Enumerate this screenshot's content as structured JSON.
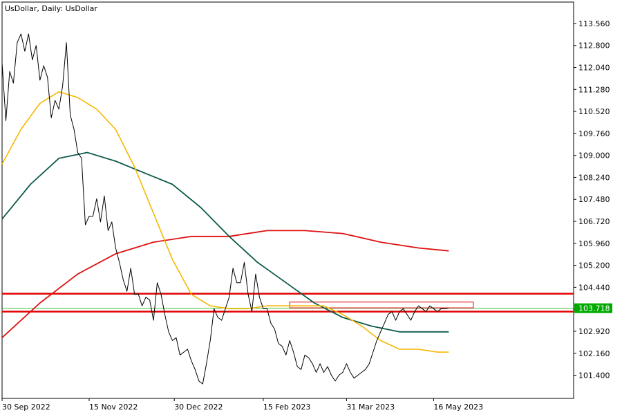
{
  "chart_data": {
    "type": "line",
    "title": "UsDollar, Daily:  UsDollar",
    "ylim": [
      100.6,
      114.3
    ],
    "xlim_dates": [
      "2022-09-30",
      "2023-07-29"
    ],
    "y_ticks": [
      101.4,
      102.16,
      102.92,
      103.68,
      104.44,
      105.2,
      105.96,
      106.72,
      107.48,
      108.24,
      109.0,
      109.76,
      110.52,
      111.28,
      112.04,
      112.8,
      113.56
    ],
    "y_tick_labels": [
      "101.400",
      "102.160",
      "102.920",
      "103.680",
      "104.440",
      "105.200",
      "105.960",
      "106.720",
      "107.480",
      "108.240",
      "109.000",
      "109.760",
      "110.520",
      "111.280",
      "112.040",
      "112.800",
      "113.560"
    ],
    "x_ticks": [
      "2022-09-30",
      "2022-11-15",
      "2022-12-30",
      "2023-02-15",
      "2023-03-31",
      "2023-05-16"
    ],
    "x_tick_labels": [
      "30 Sep 2022",
      "15 Nov 2022",
      "30 Dec 2022",
      "15 Feb 2023",
      "31 Mar 2023",
      "16 May 2023"
    ],
    "last_price": 103.718,
    "last_price_label": "103.718",
    "colors": {
      "price": "#000000",
      "ma_fast": "#f5b800",
      "ma_mid": "#0d5a4c",
      "ma_slow": "#e01010",
      "hline": "#e00000",
      "last_price": "#00aa00",
      "zone": "#e00000"
    },
    "horizontal_levels": [
      104.22,
      103.6
    ],
    "zone": {
      "x_start": "2023-03-01",
      "x_end": "2023-06-06",
      "y_low": 103.73,
      "y_high": 103.93
    },
    "series": [
      {
        "key": "price",
        "x": [
          "2022-09-30",
          "2022-10-02",
          "2022-10-04",
          "2022-10-06",
          "2022-10-08",
          "2022-10-10",
          "2022-10-12",
          "2022-10-14",
          "2022-10-16",
          "2022-10-18",
          "2022-10-20",
          "2022-10-22",
          "2022-10-24",
          "2022-10-26",
          "2022-10-28",
          "2022-10-30",
          "2022-11-01",
          "2022-11-03",
          "2022-11-05",
          "2022-11-07",
          "2022-11-09",
          "2022-11-11",
          "2022-11-13",
          "2022-11-15",
          "2022-11-17",
          "2022-11-19",
          "2022-11-21",
          "2022-11-23",
          "2022-11-25",
          "2022-11-27",
          "2022-11-29",
          "2022-12-01",
          "2022-12-03",
          "2022-12-05",
          "2022-12-07",
          "2022-12-09",
          "2022-12-11",
          "2022-12-13",
          "2022-12-15",
          "2022-12-17",
          "2022-12-19",
          "2022-12-21",
          "2022-12-23",
          "2022-12-25",
          "2022-12-27",
          "2022-12-29",
          "2022-12-31",
          "2023-01-02",
          "2023-01-04",
          "2023-01-06",
          "2023-01-08",
          "2023-01-10",
          "2023-01-12",
          "2023-01-14",
          "2023-01-16",
          "2023-01-18",
          "2023-01-20",
          "2023-01-22",
          "2023-01-24",
          "2023-01-26",
          "2023-01-28",
          "2023-01-30",
          "2023-02-01",
          "2023-02-03",
          "2023-02-05",
          "2023-02-07",
          "2023-02-09",
          "2023-02-11",
          "2023-02-13",
          "2023-02-15",
          "2023-02-17",
          "2023-02-19",
          "2023-02-21",
          "2023-02-23",
          "2023-02-25",
          "2023-02-27",
          "2023-03-01",
          "2023-03-03",
          "2023-03-05",
          "2023-03-07",
          "2023-03-09",
          "2023-03-11",
          "2023-03-13",
          "2023-03-15",
          "2023-03-17",
          "2023-03-19",
          "2023-03-21",
          "2023-03-23",
          "2023-03-25",
          "2023-03-27",
          "2023-03-29",
          "2023-03-31",
          "2023-04-02",
          "2023-04-04",
          "2023-04-06",
          "2023-04-08",
          "2023-04-10",
          "2023-04-12",
          "2023-04-14",
          "2023-04-16",
          "2023-04-18",
          "2023-04-20",
          "2023-04-22",
          "2023-04-24",
          "2023-04-26",
          "2023-04-28",
          "2023-04-30",
          "2023-05-02",
          "2023-05-04",
          "2023-05-06",
          "2023-05-08",
          "2023-05-10",
          "2023-05-12",
          "2023-05-14",
          "2023-05-16",
          "2023-05-18",
          "2023-05-20",
          "2023-05-22",
          "2023-05-24"
        ],
        "y": [
          112.2,
          110.2,
          111.9,
          111.5,
          112.9,
          113.2,
          112.6,
          113.2,
          112.3,
          112.8,
          111.6,
          112.1,
          111.7,
          110.3,
          110.9,
          110.6,
          111.4,
          112.9,
          110.4,
          109.9,
          109.1,
          108.9,
          106.6,
          106.9,
          106.9,
          107.5,
          106.7,
          107.6,
          106.4,
          106.7,
          105.8,
          105.3,
          104.7,
          104.3,
          105.1,
          104.2,
          104.2,
          103.8,
          104.1,
          104.0,
          103.3,
          104.6,
          104.2,
          103.5,
          102.9,
          102.6,
          102.7,
          102.1,
          102.2,
          102.3,
          101.9,
          101.6,
          101.2,
          101.1,
          101.8,
          102.6,
          103.7,
          103.4,
          103.3,
          103.7,
          104.1,
          105.1,
          104.6,
          104.6,
          105.3,
          104.2,
          103.6,
          104.9,
          104.1,
          103.7,
          103.7,
          103.2,
          103.0,
          102.5,
          102.4,
          102.1,
          102.6,
          102.2,
          101.7,
          101.6,
          102.1,
          102.0,
          101.8,
          101.5,
          101.8,
          101.5,
          101.7,
          101.4,
          101.2,
          101.4,
          101.5,
          101.8,
          101.5,
          101.3,
          101.4,
          101.5,
          101.6,
          101.8,
          102.2,
          102.6,
          102.9,
          103.2,
          103.5,
          103.6,
          103.3,
          103.6,
          103.7,
          103.5,
          103.3,
          103.6,
          103.8,
          103.7,
          103.6,
          103.8,
          103.7,
          103.6,
          103.7,
          103.7,
          103.72
        ]
      },
      {
        "key": "ma_fast",
        "x": [
          "2022-09-30",
          "2022-10-10",
          "2022-10-20",
          "2022-10-30",
          "2022-11-09",
          "2022-11-19",
          "2022-11-29",
          "2022-12-09",
          "2022-12-19",
          "2022-12-29",
          "2023-01-08",
          "2023-01-18",
          "2023-01-28",
          "2023-02-07",
          "2023-02-17",
          "2023-02-27",
          "2023-03-09",
          "2023-03-19",
          "2023-03-29",
          "2023-04-08",
          "2023-04-18",
          "2023-04-28",
          "2023-05-08",
          "2023-05-18",
          "2023-05-24"
        ],
        "y": [
          108.7,
          109.9,
          110.8,
          111.2,
          111.0,
          110.6,
          109.9,
          108.6,
          107.0,
          105.4,
          104.2,
          103.8,
          103.7,
          103.7,
          103.8,
          103.8,
          103.8,
          103.8,
          103.5,
          103.1,
          102.6,
          102.3,
          102.3,
          102.2,
          102.2
        ]
      },
      {
        "key": "ma_mid",
        "x": [
          "2022-09-30",
          "2022-10-15",
          "2022-10-30",
          "2022-11-14",
          "2022-11-29",
          "2022-12-14",
          "2022-12-29",
          "2023-01-13",
          "2023-01-28",
          "2023-02-12",
          "2023-02-27",
          "2023-03-14",
          "2023-03-29",
          "2023-04-13",
          "2023-04-28",
          "2023-05-13",
          "2023-05-24"
        ],
        "y": [
          106.8,
          108.0,
          108.9,
          109.1,
          108.8,
          108.4,
          108.0,
          107.2,
          106.2,
          105.3,
          104.6,
          103.9,
          103.4,
          103.1,
          102.9,
          102.9,
          102.9
        ]
      },
      {
        "key": "ma_slow",
        "x": [
          "2022-09-30",
          "2022-10-20",
          "2022-11-09",
          "2022-11-29",
          "2022-12-19",
          "2023-01-08",
          "2023-01-28",
          "2023-02-17",
          "2023-03-09",
          "2023-03-29",
          "2023-04-18",
          "2023-05-08",
          "2023-05-24"
        ],
        "y": [
          102.7,
          103.9,
          104.9,
          105.6,
          106.0,
          106.2,
          106.2,
          106.4,
          106.4,
          106.3,
          106.0,
          105.8,
          105.7
        ]
      }
    ]
  }
}
